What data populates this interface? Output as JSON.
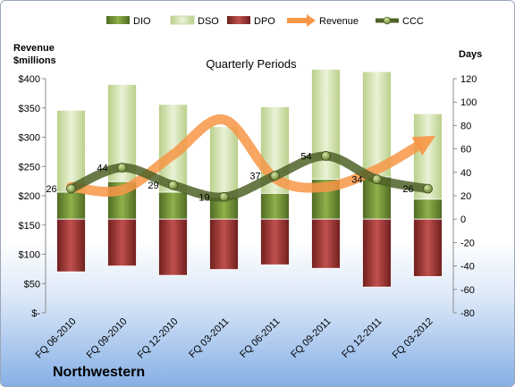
{
  "chart_data": {
    "type": "bar",
    "title": "Quarterly Periods",
    "company": "Northwestern",
    "left_axis_label": [
      "Revenue",
      "$millions"
    ],
    "right_axis_label": "Days",
    "categories": [
      "FQ 06-2010",
      "FQ 09-2010",
      "FQ 12-2010",
      "FQ 03-2011",
      "FQ 06-2011",
      "FQ 09-2011",
      "FQ 12-2011",
      "FQ 03-2012"
    ],
    "left_ylim": [
      0,
      400
    ],
    "left_ticks": [
      0,
      50,
      100,
      150,
      200,
      250,
      300,
      350,
      400
    ],
    "left_tick_labels": [
      "$-",
      "$50",
      "$100",
      "$150",
      "$200",
      "$250",
      "$300",
      "$350",
      "$400"
    ],
    "right_ylim": [
      -80,
      120
    ],
    "right_ticks": [
      -80,
      -60,
      -40,
      -20,
      0,
      20,
      40,
      60,
      80,
      100,
      120
    ],
    "grid": false,
    "legend_position": "top",
    "legend": [
      "DIO",
      "DSO",
      "DPO",
      "Revenue",
      "CCC"
    ],
    "series": [
      {
        "name": "DIO",
        "axis": "right",
        "values": [
          23,
          32,
          23,
          19,
          22,
          34,
          36,
          17
        ]
      },
      {
        "name": "DSO",
        "axis": "right",
        "values": [
          70,
          83,
          75,
          60,
          74,
          94,
          90,
          73
        ]
      },
      {
        "name": "DPO",
        "axis": "right",
        "values": [
          -45,
          -40,
          -48,
          -43,
          -39,
          -42,
          -58,
          -49
        ]
      },
      {
        "name": "Revenue",
        "axis": "left",
        "values": [
          215,
          210,
          270,
          330,
          230,
          215,
          245,
          295
        ]
      },
      {
        "name": "CCC",
        "axis": "right",
        "values": [
          26,
          44,
          29,
          19,
          37,
          54,
          34,
          26
        ],
        "labels": [
          "26",
          "44",
          "29",
          "19",
          "37",
          "54",
          "34",
          "26"
        ]
      }
    ],
    "colors": {
      "DIO": "#77933c",
      "DSO": "#d7e4bd",
      "DPO": "#953735",
      "Revenue": "#f79646",
      "CCC": "#4f6228"
    }
  }
}
